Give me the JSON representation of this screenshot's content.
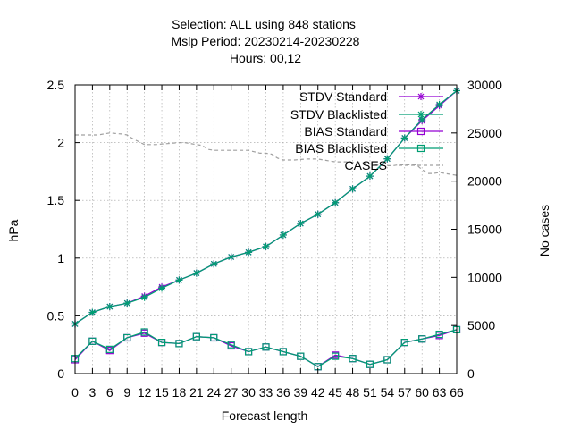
{
  "chart_data": {
    "type": "line",
    "title": [
      "Selection: ALL using   848 stations",
      "Mslp   Period: 20230214-20230228",
      "Hours:  00,12"
    ],
    "xlabel": "Forecast length",
    "ylabel": "hPa",
    "y2label": "No cases",
    "x": [
      0,
      3,
      6,
      9,
      12,
      15,
      18,
      21,
      24,
      27,
      30,
      33,
      36,
      39,
      42,
      45,
      48,
      51,
      54,
      57,
      60,
      63,
      66
    ],
    "xticks": [
      "0",
      "3",
      "6",
      "9",
      "12",
      "15",
      "18",
      "21",
      "24",
      "27",
      "30",
      "33",
      "36",
      "39",
      "42",
      "45",
      "48",
      "51",
      "54",
      "57",
      "60",
      "63",
      "66"
    ],
    "ylim": [
      0,
      2.5
    ],
    "yticks": [
      "0",
      "0.5",
      "1",
      "1.5",
      "2",
      "2.5"
    ],
    "y2lim": [
      0,
      30000
    ],
    "y2ticks": [
      "0",
      "5000",
      "10000",
      "15000",
      "20000",
      "25000",
      "30000"
    ],
    "grid": true,
    "legend_position": "top-right",
    "series": [
      {
        "name": "STDV Standard",
        "axis": "y",
        "color": "#9400d3",
        "marker": "star",
        "values": [
          0.43,
          0.53,
          0.58,
          0.61,
          0.67,
          0.75,
          0.81,
          0.87,
          0.95,
          1.01,
          1.05,
          1.1,
          1.2,
          1.3,
          1.38,
          1.48,
          1.6,
          1.71,
          1.86,
          2.04,
          2.19,
          2.32,
          2.45
        ]
      },
      {
        "name": "STDV Blacklisted",
        "axis": "y",
        "color": "#009e73",
        "marker": "star",
        "values": [
          0.43,
          0.53,
          0.58,
          0.61,
          0.66,
          0.74,
          0.81,
          0.87,
          0.95,
          1.01,
          1.05,
          1.1,
          1.2,
          1.3,
          1.38,
          1.48,
          1.6,
          1.71,
          1.86,
          2.04,
          2.2,
          2.33,
          2.45
        ]
      },
      {
        "name": "BIAS Standard",
        "axis": "y",
        "color": "#9400d3",
        "marker": "square",
        "values": [
          0.12,
          0.28,
          0.2,
          0.31,
          0.35,
          0.27,
          0.26,
          0.32,
          0.31,
          0.24,
          0.19,
          0.23,
          0.19,
          0.15,
          0.06,
          0.16,
          0.13,
          0.08,
          0.12,
          0.27,
          0.3,
          0.33,
          0.38
        ]
      },
      {
        "name": "BIAS Blacklisted",
        "axis": "y",
        "color": "#009e73",
        "marker": "square",
        "values": [
          0.13,
          0.28,
          0.21,
          0.31,
          0.36,
          0.27,
          0.26,
          0.32,
          0.31,
          0.25,
          0.19,
          0.23,
          0.19,
          0.15,
          0.06,
          0.15,
          0.13,
          0.08,
          0.12,
          0.27,
          0.3,
          0.34,
          0.38
        ]
      },
      {
        "name": "CASES",
        "axis": "y2",
        "color": "#a0a0a0",
        "style": "dashed",
        "x": [
          0,
          1,
          2,
          3,
          4,
          5,
          6,
          7,
          8,
          9,
          10,
          11,
          12,
          13,
          14,
          15,
          16,
          17,
          18,
          19,
          20,
          21,
          22,
          23,
          24,
          25,
          26,
          27,
          28,
          29,
          30,
          31,
          32,
          33,
          34,
          35,
          36,
          37,
          38,
          39,
          40,
          41,
          42,
          43,
          44,
          45,
          46,
          47,
          48,
          49,
          50,
          51,
          52,
          53,
          54,
          55,
          56,
          57,
          58,
          59,
          60,
          61,
          62,
          63,
          64,
          65,
          66
        ],
        "values": [
          24800,
          24800,
          24800,
          24800,
          24800,
          24900,
          25000,
          24950,
          24900,
          24800,
          24400,
          24100,
          23800,
          23800,
          23800,
          23850,
          23900,
          23950,
          24000,
          24000,
          23900,
          23800,
          23700,
          23300,
          23200,
          23200,
          23200,
          23200,
          23200,
          23200,
          23200,
          23050,
          22900,
          22900,
          22800,
          22400,
          22200,
          22200,
          22200,
          22250,
          22300,
          22300,
          22300,
          22200,
          22100,
          22000,
          22000,
          22000,
          21950,
          21900,
          21900,
          21800,
          21700,
          21600,
          21600,
          21600,
          21700,
          21700,
          21700,
          21700,
          21200,
          20800,
          20800,
          20900,
          20800,
          20700,
          20600
        ]
      }
    ]
  }
}
